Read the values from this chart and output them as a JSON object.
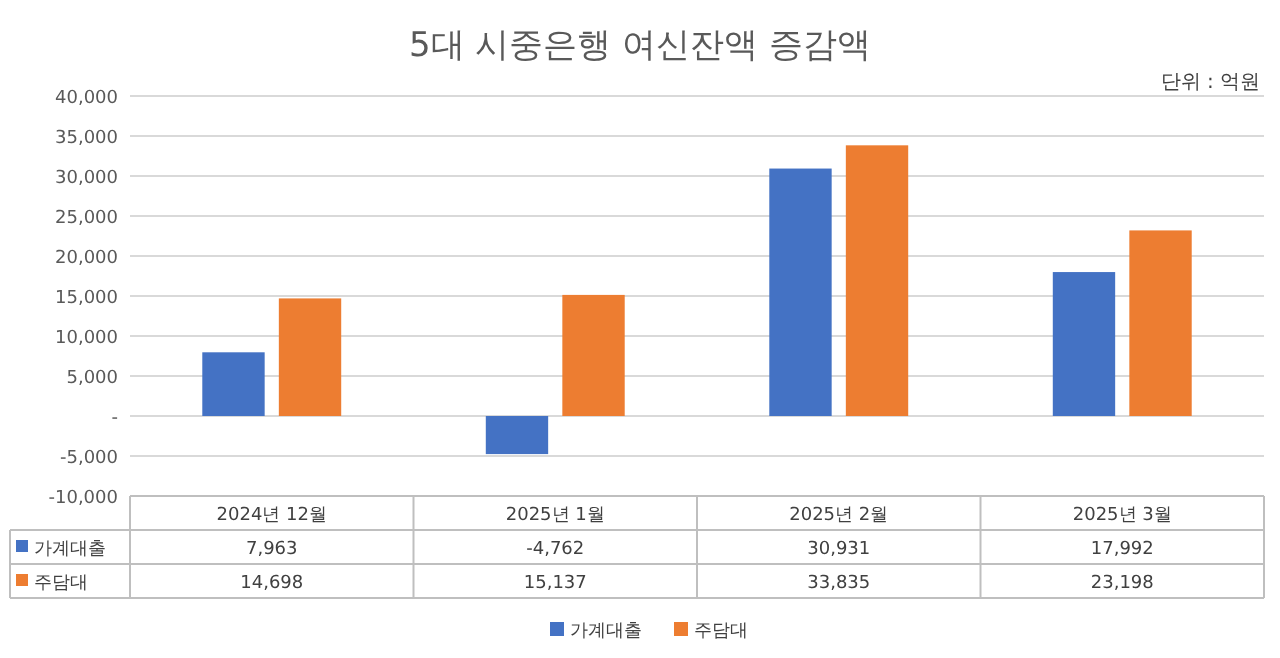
{
  "chart_data": {
    "type": "bar",
    "title": "5대 시중은행 여신잔액 증감액",
    "annotations": [
      "단위 : 억원"
    ],
    "categories": [
      "2024년 12월",
      "2025년 1월",
      "2025년 2월",
      "2025년 3월"
    ],
    "series": [
      {
        "name": "가계대출",
        "color": "#4472c4",
        "values": [
          7963,
          -4762,
          30931,
          17992
        ],
        "value_labels": [
          "7,963",
          "-4,762",
          "30,931",
          "17,992"
        ]
      },
      {
        "name": "주담대",
        "color": "#ed7d31",
        "values": [
          14698,
          15137,
          33835,
          23198
        ],
        "value_labels": [
          "14,698",
          "15,137",
          "33,835",
          "23,198"
        ]
      }
    ],
    "ylim": [
      -10000,
      40000
    ],
    "yticks": [
      {
        "value": -10000,
        "label": "-10,000"
      },
      {
        "value": -5000,
        "label": "-5,000"
      },
      {
        "value": 0,
        "label": "-"
      },
      {
        "value": 5000,
        "label": "5,000"
      },
      {
        "value": 10000,
        "label": "10,000"
      },
      {
        "value": 15000,
        "label": "15,000"
      },
      {
        "value": 20000,
        "label": "20,000"
      },
      {
        "value": 25000,
        "label": "25,000"
      },
      {
        "value": 30000,
        "label": "30,000"
      },
      {
        "value": 35000,
        "label": "35,000"
      },
      {
        "value": 40000,
        "label": "40,000"
      }
    ],
    "grid": "y",
    "legend": "bottom"
  }
}
